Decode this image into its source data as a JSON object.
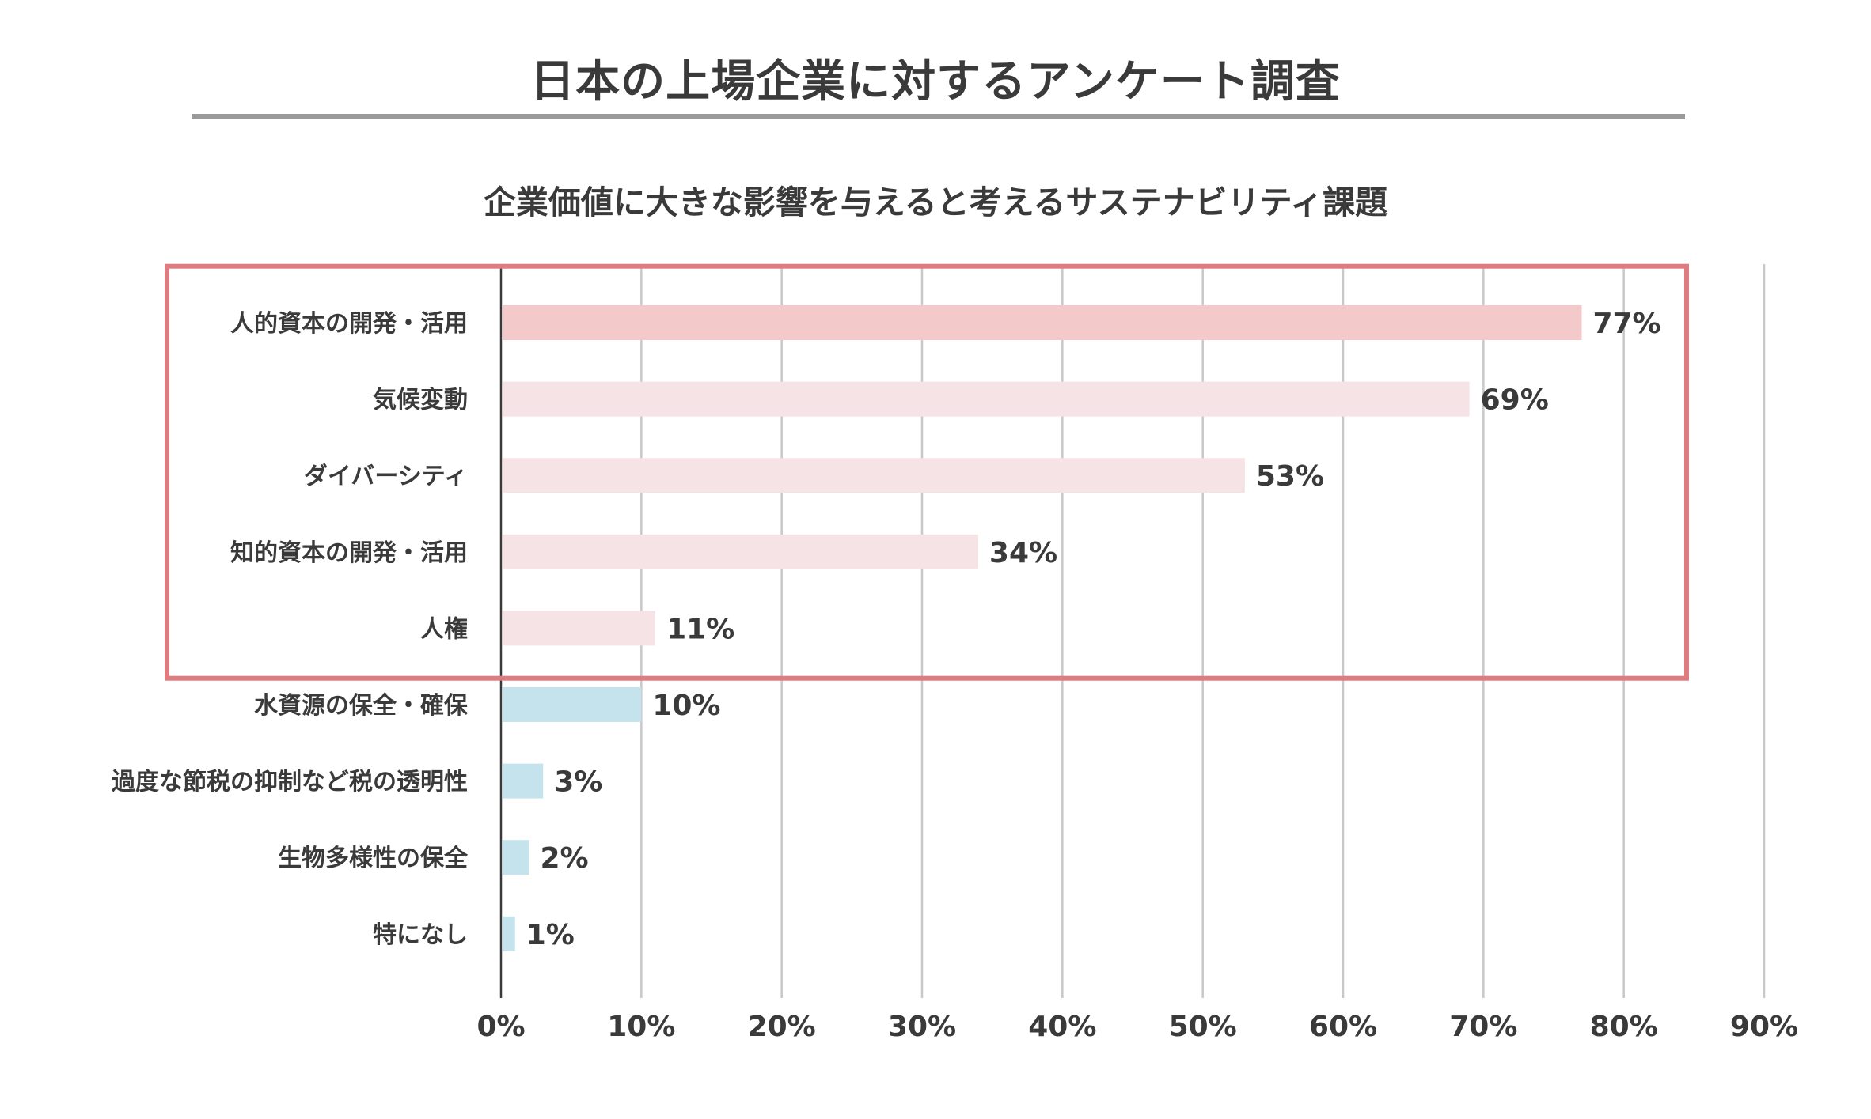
{
  "page": {
    "main_title": "日本の上場企業に対するアンケート調査",
    "chart_title": "企業価値に大きな影響を与えると考えるサステナビリティ課題"
  },
  "colors": {
    "highlight_top": "#f4c9c9",
    "highlight": "#f6e3e5",
    "other": "#c5e3ec",
    "highlight_border": "#de7c80",
    "grid": "#c8c8c8",
    "axis": "#3a3a3a",
    "title_rule": "#9a9a9a",
    "text": "#3a3a3a"
  },
  "chart_data": {
    "type": "bar",
    "orientation": "horizontal",
    "title": "企業価値に大きな影響を与えると考えるサステナビリティ課題",
    "categories": [
      "人的資本の開発・活用",
      "気候変動",
      "ダイバーシティ",
      "知的資本の開発・活用",
      "人権",
      "水資源の保全・確保",
      "過度な節税の抑制など税の透明性",
      "生物多様性の保全",
      "特になし"
    ],
    "values": [
      77,
      69,
      53,
      34,
      11,
      10,
      3,
      2,
      1
    ],
    "value_labels": [
      "77%",
      "69%",
      "53%",
      "34%",
      "11%",
      "10%",
      "3%",
      "2%",
      "1%"
    ],
    "highlighted_count": 5,
    "xlim": [
      0,
      90
    ],
    "x_ticks": [
      0,
      10,
      20,
      30,
      40,
      50,
      60,
      70,
      80,
      90
    ],
    "x_tick_labels": [
      "0%",
      "10%",
      "20%",
      "30%",
      "40%",
      "50%",
      "60%",
      "70%",
      "80%",
      "90%"
    ],
    "xlabel": "",
    "ylabel": "",
    "grid": "vertical",
    "legend": "none"
  }
}
